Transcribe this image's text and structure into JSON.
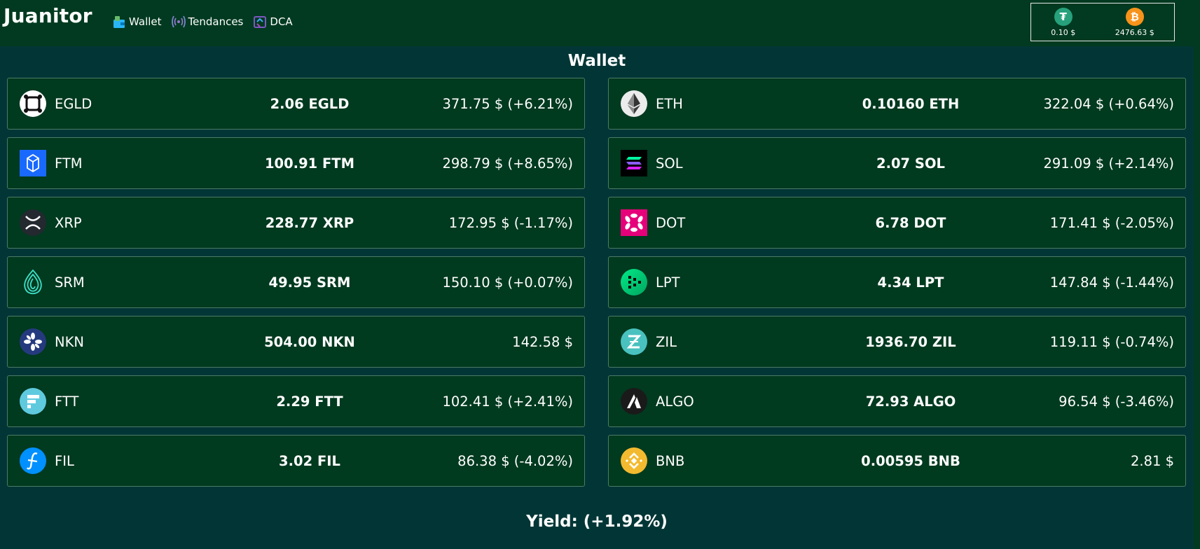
{
  "app": {
    "title": "Juanitor"
  },
  "nav": [
    {
      "label": "Wallet",
      "icon": "wallet-icon"
    },
    {
      "label": "Tendances",
      "icon": "signal-icon"
    },
    {
      "label": "DCA",
      "icon": "cycle-icon"
    }
  ],
  "ticker": [
    {
      "icon": "tether-icon",
      "symbol": "₮",
      "color": "#26a17b",
      "price": "0.10 $"
    },
    {
      "icon": "bitcoin-icon",
      "symbol": "₿",
      "color": "#f7931a",
      "price": "2476.63 $"
    }
  ],
  "page": {
    "title": "Wallet",
    "yield": "Yield: (+1.92%)"
  },
  "coins": [
    {
      "name": "EGLD",
      "amount": "2.06 EGLD",
      "value": "371.75 $ (+6.21%)",
      "icon": "egld-icon"
    },
    {
      "name": "ETH",
      "amount": "0.10160 ETH",
      "value": "322.04 $ (+0.64%)",
      "icon": "eth-icon"
    },
    {
      "name": "FTM",
      "amount": "100.91 FTM",
      "value": "298.79 $ (+8.65%)",
      "icon": "ftm-icon"
    },
    {
      "name": "SOL",
      "amount": "2.07 SOL",
      "value": "291.09 $ (+2.14%)",
      "icon": "sol-icon"
    },
    {
      "name": "XRP",
      "amount": "228.77 XRP",
      "value": "172.95 $ (-1.17%)",
      "icon": "xrp-icon"
    },
    {
      "name": "DOT",
      "amount": "6.78 DOT",
      "value": "171.41 $ (-2.05%)",
      "icon": "dot-icon"
    },
    {
      "name": "SRM",
      "amount": "49.95 SRM",
      "value": "150.10 $ (+0.07%)",
      "icon": "srm-icon"
    },
    {
      "name": "LPT",
      "amount": "4.34 LPT",
      "value": "147.84 $ (-1.44%)",
      "icon": "lpt-icon"
    },
    {
      "name": "NKN",
      "amount": "504.00 NKN",
      "value": "142.58 $",
      "icon": "nkn-icon"
    },
    {
      "name": "ZIL",
      "amount": "1936.70 ZIL",
      "value": "119.11 $ (-0.74%)",
      "icon": "zil-icon"
    },
    {
      "name": "FTT",
      "amount": "2.29 FTT",
      "value": "102.41 $ (+2.41%)",
      "icon": "ftt-icon"
    },
    {
      "name": "ALGO",
      "amount": "72.93 ALGO",
      "value": "96.54 $ (-3.46%)",
      "icon": "algo-icon"
    },
    {
      "name": "FIL",
      "amount": "3.02 FIL",
      "value": "86.38 $ (-4.02%)",
      "icon": "fil-icon"
    },
    {
      "name": "BNB",
      "amount": "0.00595 BNB",
      "value": "2.81 $",
      "icon": "bnb-icon"
    }
  ]
}
